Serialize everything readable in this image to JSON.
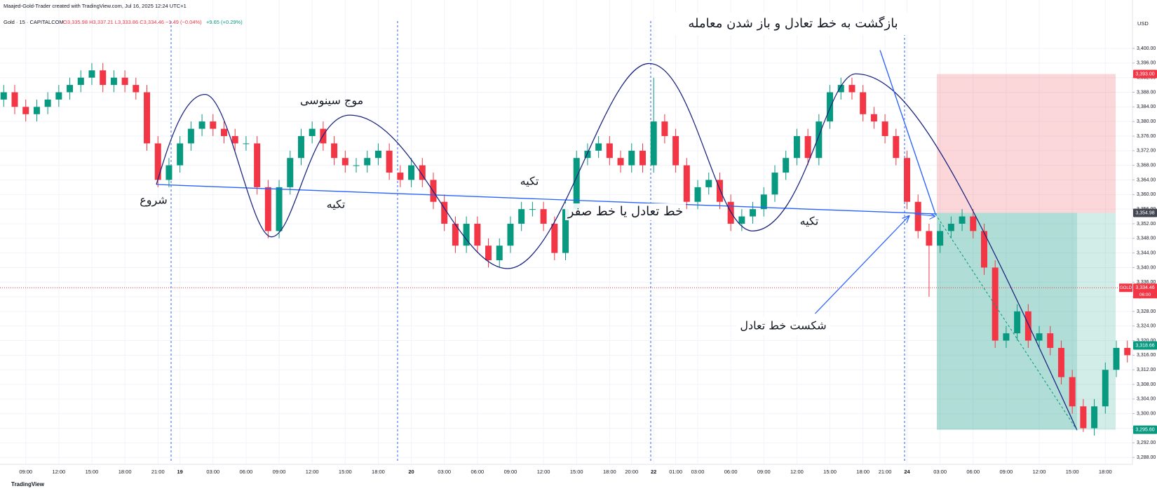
{
  "chart_data": {
    "type": "candlestick",
    "title": "Gold · 15 · CAPITALCOM",
    "subtitle": "Maajed-Gold-Trader created with TradingView.com, Jul 16, 2025 12:24 UTC+1",
    "ohlc_text": "O3,335.98 H3,337.21 L3,333.86 C3,334.46 −1.49 (−0.04%)",
    "change_text": "+9.65 (+0.29%)",
    "currency": "USD",
    "footer": "TradingView",
    "up_color": "#089981",
    "down_color": "#f23645",
    "grid": true,
    "categories": [
      null,
      null,
      "09:00",
      null,
      null,
      "12:00",
      null,
      null,
      "15:00",
      null,
      null,
      "18:00",
      null,
      null,
      "21:00",
      null,
      "19",
      null,
      null,
      "03:00",
      null,
      null,
      "06:00",
      null,
      null,
      "09:00",
      null,
      null,
      "12:00",
      null,
      null,
      "15:00",
      null,
      null,
      "18:00",
      null,
      null,
      "20",
      null,
      null,
      "03:00",
      null,
      null,
      "06:00",
      null,
      null,
      "09:00",
      null,
      null,
      "12:00",
      null,
      null,
      "15:00",
      null,
      null,
      "18:00",
      null,
      "20:00",
      null,
      "22",
      null,
      "01:00",
      null,
      "03:00",
      null,
      null,
      "06:00",
      null,
      null,
      "09:00",
      null,
      null,
      "12:00",
      null,
      null,
      "15:00",
      null,
      null,
      "18:00",
      null,
      "21:00",
      null,
      "24",
      null,
      null,
      "03:00",
      null,
      null,
      "06:00",
      null,
      null,
      "09:00",
      null,
      null,
      "12:00",
      null,
      null,
      "15:00",
      null,
      null,
      "18:00",
      null,
      null
    ],
    "open": [
      3386,
      3388,
      3384,
      3382,
      3384,
      3386,
      3388,
      3390,
      3392,
      3394,
      3390,
      3392,
      3390,
      3388,
      3374,
      3364,
      3368,
      3374,
      3378,
      3380,
      3378,
      3376,
      3374,
      3374,
      3362,
      3350,
      3362,
      3370,
      3376,
      3378,
      3374,
      3370,
      3368,
      3368,
      3370,
      3372,
      3366,
      3364,
      3368,
      3364,
      3358,
      3352,
      3346,
      3352,
      3346,
      3342,
      3346,
      3352,
      3356,
      3356,
      3352,
      3344,
      3356,
      3370,
      3372,
      3374,
      3370,
      3368,
      3372,
      3368,
      3380,
      3376,
      3368,
      3358,
      3362,
      3364,
      3358,
      3352,
      3354,
      3356,
      3360,
      3366,
      3370,
      3376,
      3370,
      3380,
      3388,
      3390,
      3388,
      3382,
      3380,
      3376,
      3370,
      3358,
      3350,
      3346,
      3350,
      3352,
      3354,
      3350,
      3340,
      3320,
      3322,
      3328,
      3320,
      3322,
      3318,
      3310,
      3302,
      3296,
      3302,
      3312,
      3318
    ],
    "high": [
      3390,
      3390,
      3386,
      3386,
      3388,
      3390,
      3392,
      3394,
      3396,
      3396,
      3394,
      3394,
      3392,
      3390,
      3376,
      3370,
      3376,
      3380,
      3382,
      3382,
      3380,
      3378,
      3376,
      3376,
      3364,
      3364,
      3372,
      3378,
      3380,
      3380,
      3376,
      3372,
      3370,
      3372,
      3374,
      3374,
      3368,
      3370,
      3370,
      3366,
      3360,
      3354,
      3354,
      3354,
      3348,
      3348,
      3354,
      3358,
      3358,
      3358,
      3354,
      3358,
      3372,
      3374,
      3376,
      3376,
      3372,
      3374,
      3374,
      3392,
      3382,
      3378,
      3370,
      3364,
      3366,
      3366,
      3360,
      3356,
      3358,
      3362,
      3368,
      3372,
      3378,
      3378,
      3382,
      3390,
      3392,
      3392,
      3390,
      3384,
      3382,
      3378,
      3372,
      3360,
      3352,
      3352,
      3354,
      3356,
      3356,
      3352,
      3342,
      3324,
      3330,
      3330,
      3324,
      3324,
      3320,
      3312,
      3304,
      3304,
      3314,
      3320,
      3320
    ],
    "low": [
      3384,
      3382,
      3380,
      3380,
      3382,
      3384,
      3386,
      3388,
      3390,
      3388,
      3388,
      3388,
      3386,
      3372,
      3362,
      3362,
      3366,
      3372,
      3376,
      3376,
      3374,
      3372,
      3372,
      3360,
      3348,
      3348,
      3360,
      3368,
      3374,
      3372,
      3368,
      3366,
      3366,
      3366,
      3368,
      3364,
      3362,
      3362,
      3362,
      3356,
      3350,
      3344,
      3344,
      3344,
      3340,
      3340,
      3344,
      3350,
      3354,
      3350,
      3342,
      3342,
      3354,
      3368,
      3370,
      3368,
      3366,
      3366,
      3366,
      3366,
      3374,
      3366,
      3356,
      3356,
      3360,
      3356,
      3350,
      3350,
      3352,
      3354,
      3358,
      3364,
      3368,
      3368,
      3368,
      3378,
      3386,
      3386,
      3380,
      3378,
      3374,
      3368,
      3356,
      3348,
      3332,
      3344,
      3348,
      3350,
      3348,
      3338,
      3318,
      3318,
      3320,
      3318,
      3318,
      3316,
      3308,
      3300,
      3295,
      3294,
      3300,
      3310,
      3314
    ],
    "close": [
      3388,
      3384,
      3382,
      3384,
      3386,
      3388,
      3390,
      3392,
      3394,
      3390,
      3392,
      3390,
      3388,
      3374,
      3364,
      3368,
      3374,
      3378,
      3380,
      3378,
      3376,
      3374,
      3374,
      3362,
      3350,
      3362,
      3370,
      3376,
      3378,
      3374,
      3370,
      3368,
      3368,
      3370,
      3372,
      3366,
      3364,
      3368,
      3364,
      3358,
      3352,
      3346,
      3352,
      3346,
      3342,
      3346,
      3352,
      3356,
      3356,
      3352,
      3344,
      3356,
      3370,
      3372,
      3374,
      3370,
      3368,
      3372,
      3368,
      3380,
      3376,
      3368,
      3358,
      3362,
      3364,
      3358,
      3352,
      3354,
      3356,
      3360,
      3366,
      3370,
      3376,
      3370,
      3380,
      3388,
      3390,
      3388,
      3382,
      3380,
      3376,
      3370,
      3358,
      3350,
      3346,
      3350,
      3352,
      3354,
      3350,
      3340,
      3320,
      3322,
      3328,
      3320,
      3322,
      3318,
      3310,
      3302,
      3296,
      3302,
      3312,
      3318,
      3316
    ],
    "ylim": [
      3286.5,
      3407.5
    ],
    "yticks": [
      {
        "value": 3288,
        "label": "3,288.00"
      },
      {
        "value": 3292,
        "label": "3,292.00"
      },
      {
        "value": 3296,
        "label": "3,296.00"
      },
      {
        "value": 3300,
        "label": "3,300.00"
      },
      {
        "value": 3304,
        "label": "3,304.00"
      },
      {
        "value": 3308,
        "label": "3,308.00"
      },
      {
        "value": 3312,
        "label": "3,312.00"
      },
      {
        "value": 3316,
        "label": "3,316.00"
      },
      {
        "value": 3320,
        "label": "3,320.00"
      },
      {
        "value": 3324,
        "label": "3,324.00"
      },
      {
        "value": 3328,
        "label": "3,328.00"
      },
      {
        "value": 3332,
        "label": "3,332.00"
      },
      {
        "value": 3336,
        "label": "3,336.00"
      },
      {
        "value": 3340,
        "label": "3,340.00"
      },
      {
        "value": 3344,
        "label": "3,344.00"
      },
      {
        "value": 3348,
        "label": "3,348.00"
      },
      {
        "value": 3352,
        "label": "3,352.00"
      },
      {
        "value": 3356,
        "label": "3,356.00"
      },
      {
        "value": 3360,
        "label": "3,360.00"
      },
      {
        "value": 3364,
        "label": "3,364.00"
      },
      {
        "value": 3368,
        "label": "3,368.00"
      },
      {
        "value": 3372,
        "label": "3,372.00"
      },
      {
        "value": 3376,
        "label": "3,376.00"
      },
      {
        "value": 3380,
        "label": "3,380.00"
      },
      {
        "value": 3384,
        "label": "3,384.00"
      },
      {
        "value": 3388,
        "label": "3,388.00"
      },
      {
        "value": 3392,
        "label": "3,392.00"
      },
      {
        "value": 3396,
        "label": "3,396.00"
      },
      {
        "value": 3400,
        "label": "3,400.00"
      }
    ],
    "price_tags": [
      {
        "value": 3393,
        "label": "3,393.00",
        "color": "#f23645"
      },
      {
        "value": 3354.98,
        "label": "3,354.98",
        "color": "#434651"
      },
      {
        "value": 3334.46,
        "label": "3,334.46",
        "color": "#f23645"
      },
      {
        "value": 3318.66,
        "label": "3,318.66",
        "color": "#089981"
      },
      {
        "value": 3295.6,
        "label": "3,295.60",
        "color": "#089981"
      }
    ],
    "symbol_tag": "GOLD",
    "countdown": "06:00",
    "annotations": [
      "بازگشت به خط تعادل و باز شدن معامله",
      "موج سینوسی",
      "شروع",
      "تکیه",
      "تکیه",
      "تکیه",
      "خط تعادل یا خط صفر",
      "شکست خط تعادل"
    ]
  }
}
